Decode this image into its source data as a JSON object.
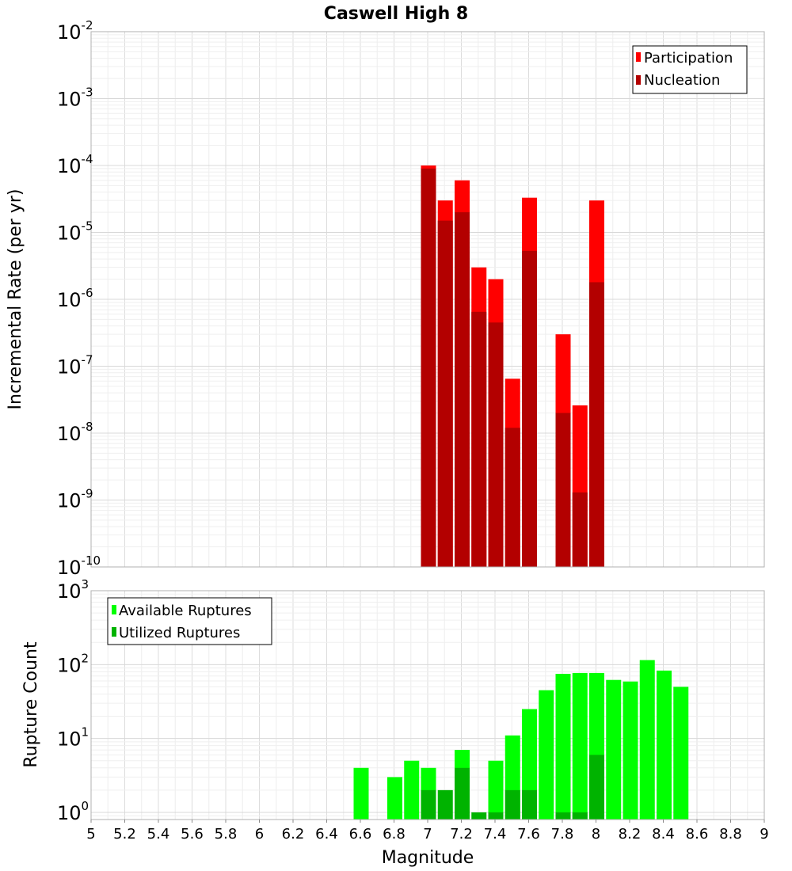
{
  "chart_data": [
    {
      "type": "bar",
      "title": "Caswell High 8",
      "xlabel": "",
      "ylabel": "Incremental Rate (per yr)",
      "xlim": [
        5,
        9
      ],
      "ylim": [
        1e-10,
        0.01
      ],
      "yscale": "log",
      "grid": true,
      "legend_position": "top-right",
      "series": [
        {
          "name": "Participation",
          "color": "#ff0000",
          "points": [
            {
              "x": 7.0,
              "y": 0.0001
            },
            {
              "x": 7.1,
              "y": 3e-05
            },
            {
              "x": 7.2,
              "y": 6e-05
            },
            {
              "x": 7.3,
              "y": 3e-06
            },
            {
              "x": 7.4,
              "y": 2e-06
            },
            {
              "x": 7.5,
              "y": 6.5e-08
            },
            {
              "x": 7.6,
              "y": 3.3e-05
            },
            {
              "x": 7.8,
              "y": 3e-07
            },
            {
              "x": 7.9,
              "y": 2.6e-08
            },
            {
              "x": 8.0,
              "y": 3e-05
            }
          ]
        },
        {
          "name": "Nucleation",
          "color": "#b30000",
          "points": [
            {
              "x": 7.0,
              "y": 9e-05
            },
            {
              "x": 7.1,
              "y": 1.5e-05
            },
            {
              "x": 7.2,
              "y": 2e-05
            },
            {
              "x": 7.3,
              "y": 6.5e-07
            },
            {
              "x": 7.4,
              "y": 4.5e-07
            },
            {
              "x": 7.5,
              "y": 1.2e-08
            },
            {
              "x": 7.6,
              "y": 5.3e-06
            },
            {
              "x": 7.8,
              "y": 2e-08
            },
            {
              "x": 7.9,
              "y": 1.3e-09
            },
            {
              "x": 8.0,
              "y": 1.8e-06
            }
          ]
        }
      ]
    },
    {
      "type": "bar",
      "title": "",
      "xlabel": "Magnitude",
      "ylabel": "Rupture Count",
      "xlim": [
        5,
        9
      ],
      "ylim": [
        0.8,
        1000
      ],
      "yscale": "log",
      "grid": true,
      "legend_position": "top-left",
      "series": [
        {
          "name": "Available Ruptures",
          "color": "#00ff00",
          "points": [
            {
              "x": 6.6,
              "y": 4
            },
            {
              "x": 6.8,
              "y": 3
            },
            {
              "x": 6.9,
              "y": 5
            },
            {
              "x": 7.0,
              "y": 4
            },
            {
              "x": 7.2,
              "y": 7
            },
            {
              "x": 7.4,
              "y": 5
            },
            {
              "x": 7.5,
              "y": 11
            },
            {
              "x": 7.6,
              "y": 25
            },
            {
              "x": 7.7,
              "y": 45
            },
            {
              "x": 7.8,
              "y": 75
            },
            {
              "x": 7.9,
              "y": 77
            },
            {
              "x": 8.0,
              "y": 77
            },
            {
              "x": 8.1,
              "y": 62
            },
            {
              "x": 8.2,
              "y": 59
            },
            {
              "x": 8.3,
              "y": 115
            },
            {
              "x": 8.4,
              "y": 83
            },
            {
              "x": 8.5,
              "y": 50
            }
          ]
        },
        {
          "name": "Utilized Ruptures",
          "color": "#00b300",
          "points": [
            {
              "x": 7.0,
              "y": 2
            },
            {
              "x": 7.1,
              "y": 2
            },
            {
              "x": 7.2,
              "y": 4
            },
            {
              "x": 7.3,
              "y": 1
            },
            {
              "x": 7.4,
              "y": 1
            },
            {
              "x": 7.5,
              "y": 2
            },
            {
              "x": 7.6,
              "y": 2
            },
            {
              "x": 7.8,
              "y": 1
            },
            {
              "x": 7.9,
              "y": 1
            },
            {
              "x": 8.0,
              "y": 6
            }
          ]
        }
      ]
    }
  ],
  "x_ticks": [
    "5",
    "5.2",
    "5.4",
    "5.6",
    "5.8",
    "6",
    "6.2",
    "6.4",
    "6.6",
    "6.8",
    "7",
    "7.2",
    "7.4",
    "7.6",
    "7.8",
    "8",
    "8.2",
    "8.4",
    "8.6",
    "8.8",
    "9"
  ],
  "top_y_ticks": [
    {
      "base": "10",
      "exp": "-2"
    },
    {
      "base": "10",
      "exp": "-3"
    },
    {
      "base": "10",
      "exp": "-4"
    },
    {
      "base": "10",
      "exp": "-5"
    },
    {
      "base": "10",
      "exp": "-6"
    },
    {
      "base": "10",
      "exp": "-7"
    },
    {
      "base": "10",
      "exp": "-8"
    },
    {
      "base": "10",
      "exp": "-9"
    },
    {
      "base": "10",
      "exp": "-10"
    }
  ],
  "bottom_y_ticks": [
    {
      "base": "10",
      "exp": "3"
    },
    {
      "base": "10",
      "exp": "2"
    },
    {
      "base": "10",
      "exp": "1"
    },
    {
      "base": "10",
      "exp": "0"
    }
  ]
}
